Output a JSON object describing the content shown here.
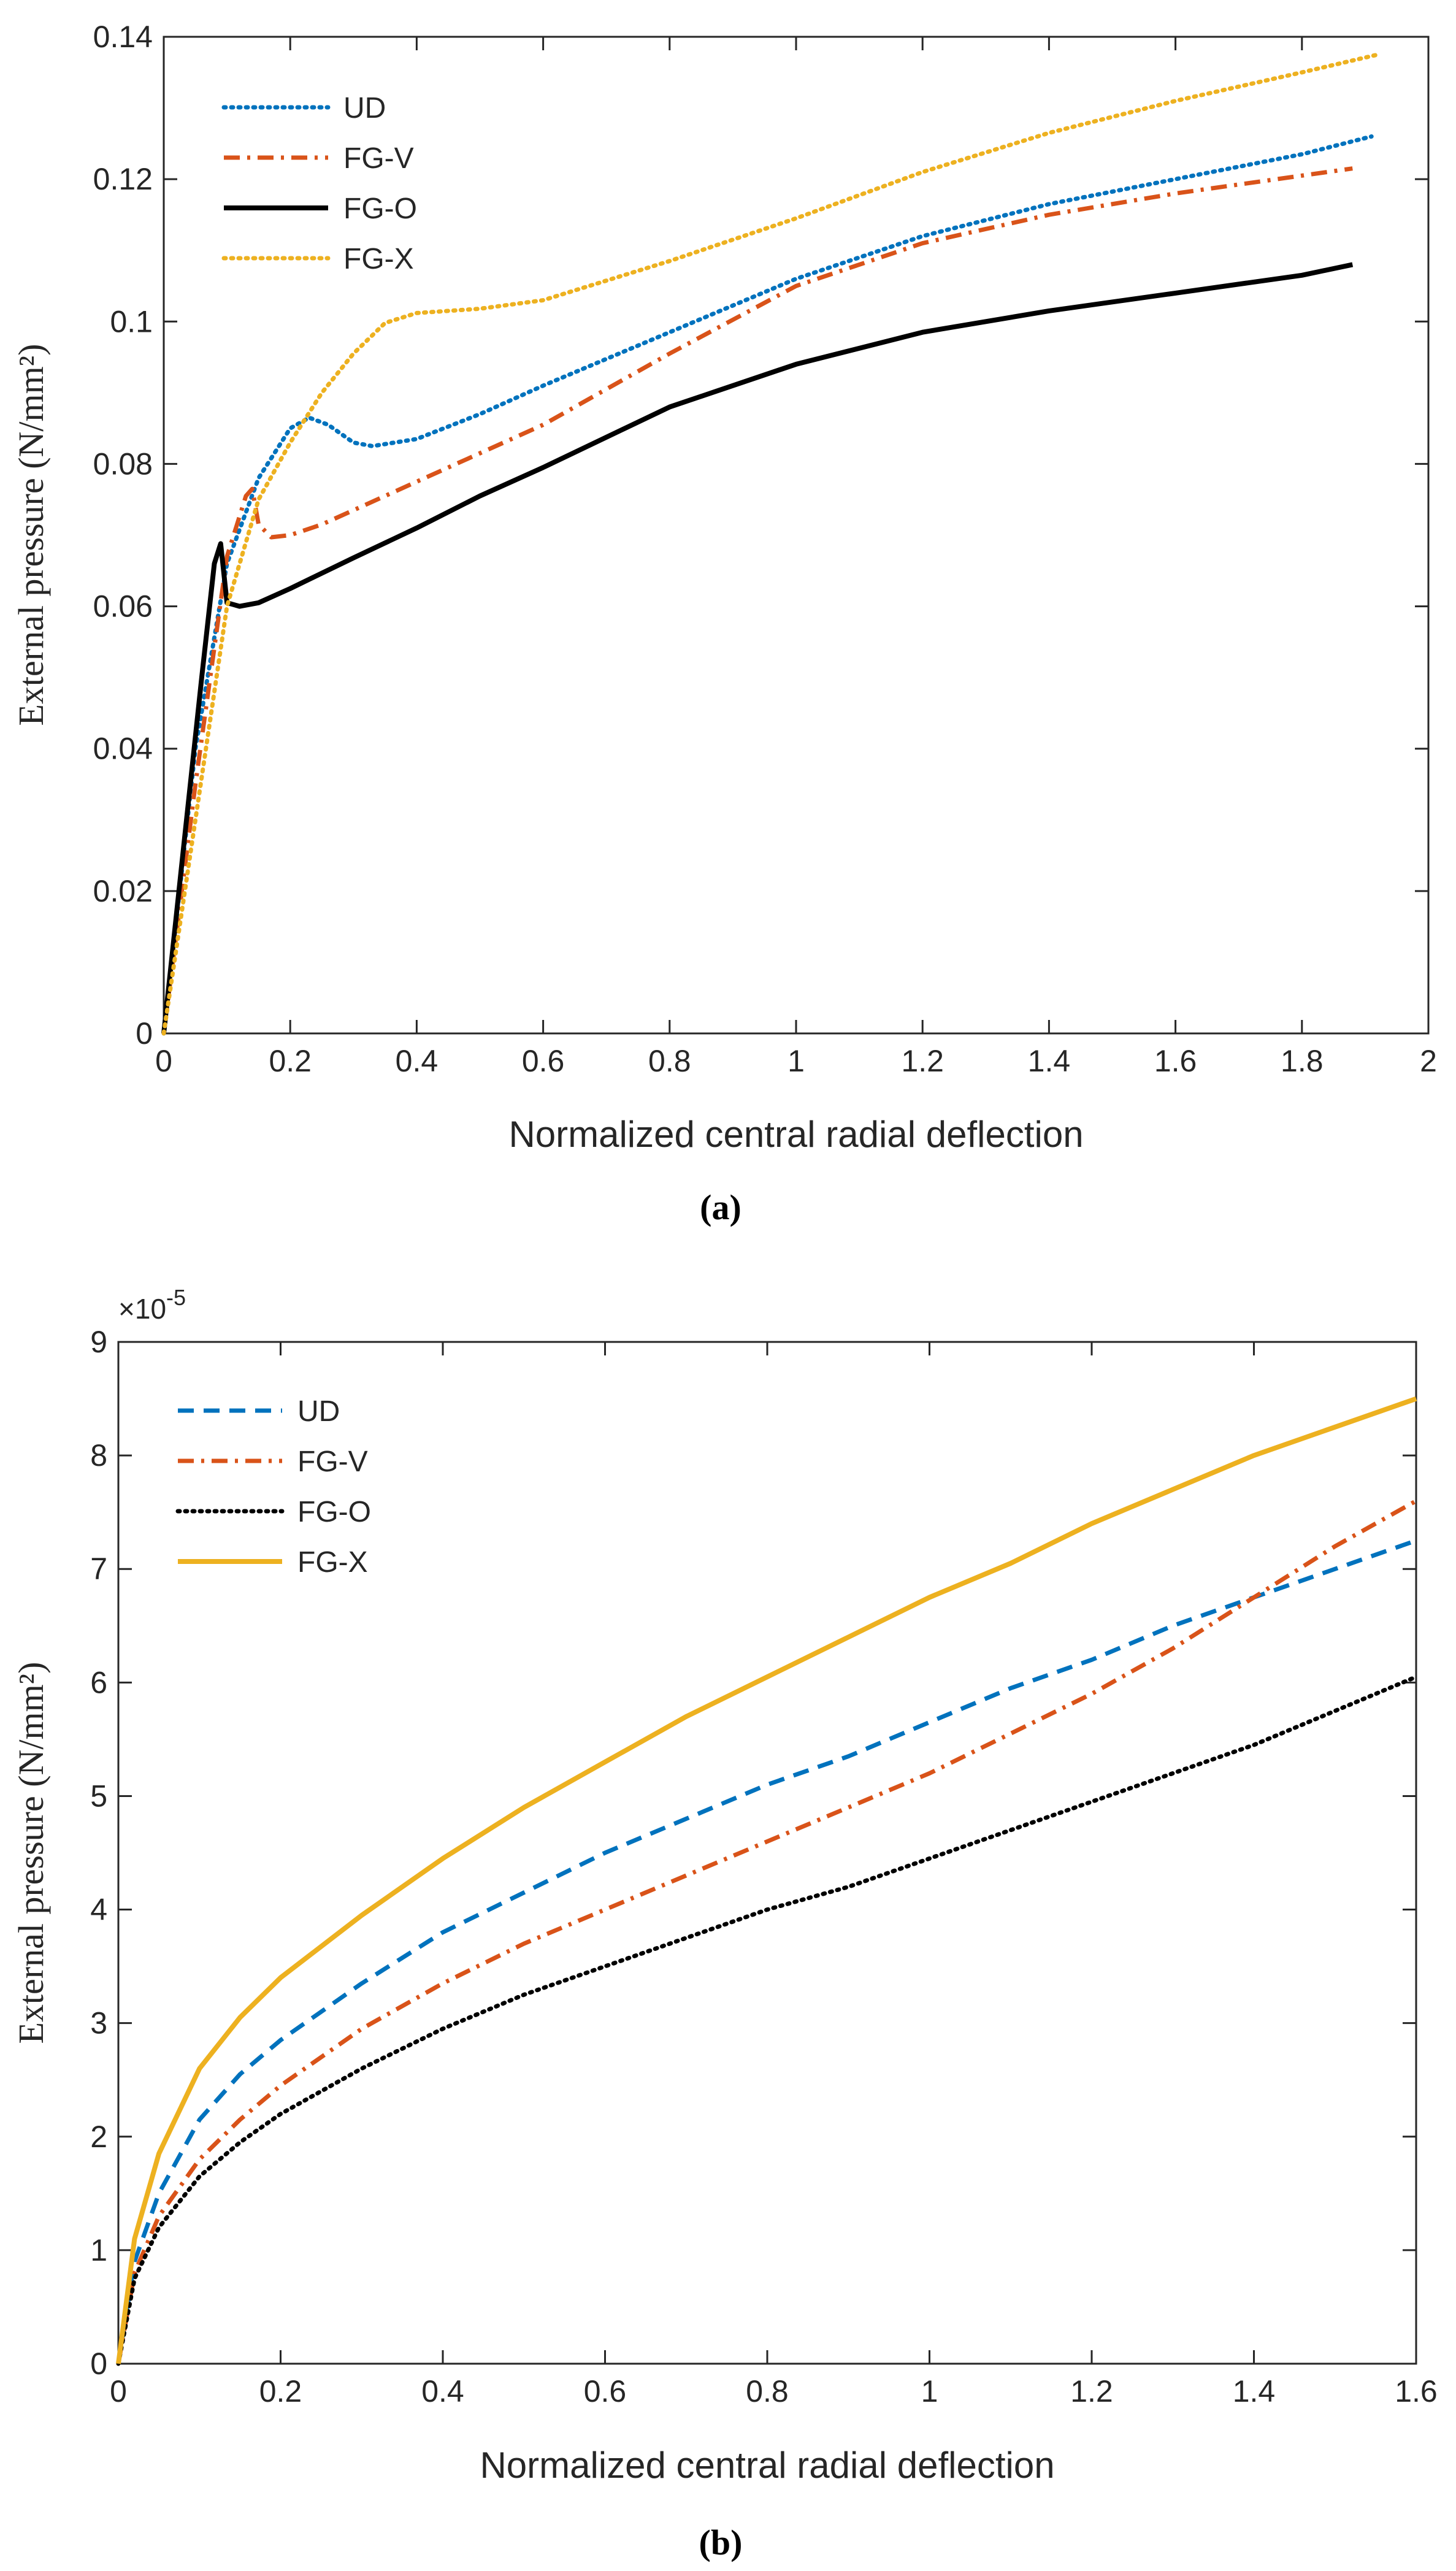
{
  "chart_data": [
    {
      "type": "line",
      "caption": "a",
      "xlabel": "Normalized central radial deflection",
      "ylabel": "External pressure (N/mm²)",
      "xlim": [
        0,
        2
      ],
      "ylim": [
        0,
        0.14
      ],
      "x_ticks": [
        0,
        0.2,
        0.4,
        0.6,
        0.8,
        1,
        1.2,
        1.4,
        1.6,
        1.8,
        2
      ],
      "x_tick_labels": [
        "0",
        "0.2",
        "0.4",
        "0.6",
        "0.8",
        "1",
        "1.2",
        "1.4",
        "1.6",
        "1.8",
        "2"
      ],
      "y_ticks": [
        0,
        0.02,
        0.04,
        0.06,
        0.08,
        0.1,
        0.12,
        0.14
      ],
      "y_tick_labels": [
        "0",
        "0.02",
        "0.04",
        "0.06",
        "0.08",
        "0.1",
        "0.12",
        "0.14"
      ],
      "legend_position": "top-left",
      "series": [
        {
          "name": "UD",
          "color": "#0072BD",
          "style": "dotted",
          "x": [
            0,
            0.05,
            0.1,
            0.15,
            0.2,
            0.23,
            0.26,
            0.3,
            0.33,
            0.4,
            0.5,
            0.6,
            0.8,
            1.0,
            1.2,
            1.4,
            1.6,
            1.8,
            1.91
          ],
          "y": [
            0,
            0.04,
            0.066,
            0.078,
            0.085,
            0.0865,
            0.0855,
            0.083,
            0.0825,
            0.0835,
            0.087,
            0.091,
            0.0985,
            0.106,
            0.112,
            0.1165,
            0.12,
            0.1235,
            0.126
          ]
        },
        {
          "name": "FG-V",
          "color": "#D95319",
          "style": "dashdot",
          "x": [
            0,
            0.05,
            0.1,
            0.13,
            0.14,
            0.15,
            0.17,
            0.2,
            0.25,
            0.3,
            0.4,
            0.5,
            0.6,
            0.8,
            1.0,
            1.2,
            1.4,
            1.6,
            1.8,
            1.88
          ],
          "y": [
            0,
            0.035,
            0.067,
            0.0755,
            0.0765,
            0.0715,
            0.0697,
            0.07,
            0.0715,
            0.0735,
            0.0775,
            0.0815,
            0.0855,
            0.0955,
            0.105,
            0.111,
            0.115,
            0.118,
            0.1205,
            0.1215
          ]
        },
        {
          "name": "FG-O",
          "color": "#000000",
          "style": "solid",
          "x": [
            0,
            0.03,
            0.06,
            0.08,
            0.09,
            0.1,
            0.12,
            0.15,
            0.2,
            0.3,
            0.4,
            0.5,
            0.6,
            0.8,
            1.0,
            1.2,
            1.4,
            1.6,
            1.8,
            1.88
          ],
          "y": [
            0,
            0.025,
            0.05,
            0.066,
            0.0688,
            0.0605,
            0.06,
            0.0605,
            0.0625,
            0.0668,
            0.071,
            0.0755,
            0.0795,
            0.088,
            0.094,
            0.0985,
            0.1015,
            0.104,
            0.1065,
            0.108
          ]
        },
        {
          "name": "FG-X",
          "color": "#EDB120",
          "style": "dotted",
          "x": [
            0,
            0.05,
            0.1,
            0.15,
            0.2,
            0.25,
            0.3,
            0.35,
            0.4,
            0.5,
            0.6,
            0.8,
            1.0,
            1.2,
            1.4,
            1.6,
            1.8,
            1.92
          ],
          "y": [
            0,
            0.03,
            0.06,
            0.075,
            0.083,
            0.09,
            0.0955,
            0.0998,
            0.1012,
            0.1018,
            0.103,
            0.1085,
            0.1145,
            0.121,
            0.1265,
            0.131,
            0.135,
            0.1375
          ]
        }
      ]
    },
    {
      "type": "line",
      "caption": "b",
      "xlabel": "Normalized central radial deflection",
      "ylabel": "External pressure (N/mm²)",
      "y_scale_label": "×10",
      "y_scale_exponent": "-5",
      "xlim": [
        0,
        1.6
      ],
      "ylim": [
        0,
        9
      ],
      "x_ticks": [
        0,
        0.2,
        0.4,
        0.6,
        0.8,
        1,
        1.2,
        1.4,
        1.6
      ],
      "x_tick_labels": [
        "0",
        "0.2",
        "0.4",
        "0.6",
        "0.8",
        "1",
        "1.2",
        "1.4",
        "1.6"
      ],
      "y_ticks": [
        0,
        1,
        2,
        3,
        4,
        5,
        6,
        7,
        8,
        9
      ],
      "y_tick_labels": [
        "0",
        "1",
        "2",
        "3",
        "4",
        "5",
        "6",
        "7",
        "8",
        "9"
      ],
      "legend_position": "top-left",
      "series": [
        {
          "name": "UD",
          "color": "#0072BD",
          "style": "dashed",
          "x": [
            0,
            0.02,
            0.05,
            0.1,
            0.15,
            0.2,
            0.3,
            0.4,
            0.5,
            0.6,
            0.7,
            0.8,
            0.9,
            1.0,
            1.1,
            1.2,
            1.3,
            1.4,
            1.5,
            1.6
          ],
          "y": [
            0,
            0.9,
            1.5,
            2.15,
            2.55,
            2.85,
            3.35,
            3.8,
            4.15,
            4.5,
            4.8,
            5.1,
            5.35,
            5.65,
            5.95,
            6.2,
            6.5,
            6.75,
            7.0,
            7.25
          ]
        },
        {
          "name": "FG-V",
          "color": "#D95319",
          "style": "dashdot",
          "x": [
            0,
            0.02,
            0.05,
            0.1,
            0.15,
            0.2,
            0.3,
            0.4,
            0.5,
            0.6,
            0.7,
            0.8,
            0.9,
            1.0,
            1.1,
            1.2,
            1.3,
            1.4,
            1.5,
            1.6
          ],
          "y": [
            0,
            0.8,
            1.3,
            1.8,
            2.15,
            2.45,
            2.95,
            3.35,
            3.7,
            4.0,
            4.3,
            4.6,
            4.9,
            5.2,
            5.55,
            5.9,
            6.3,
            6.75,
            7.2,
            7.6
          ]
        },
        {
          "name": "FG-O",
          "color": "#000000",
          "style": "dotted",
          "x": [
            0,
            0.02,
            0.05,
            0.1,
            0.15,
            0.2,
            0.3,
            0.4,
            0.5,
            0.6,
            0.7,
            0.8,
            0.9,
            1.0,
            1.1,
            1.2,
            1.3,
            1.4,
            1.5,
            1.6
          ],
          "y": [
            0,
            0.75,
            1.2,
            1.65,
            1.95,
            2.2,
            2.6,
            2.95,
            3.25,
            3.5,
            3.75,
            4.0,
            4.2,
            4.45,
            4.7,
            4.95,
            5.2,
            5.45,
            5.75,
            6.05
          ]
        },
        {
          "name": "FG-X",
          "color": "#EDB120",
          "style": "solid",
          "x": [
            0,
            0.02,
            0.05,
            0.1,
            0.15,
            0.2,
            0.3,
            0.4,
            0.5,
            0.6,
            0.7,
            0.8,
            0.9,
            1.0,
            1.1,
            1.2,
            1.3,
            1.4,
            1.5,
            1.6
          ],
          "y": [
            0,
            1.1,
            1.85,
            2.6,
            3.05,
            3.4,
            3.95,
            4.45,
            4.9,
            5.3,
            5.7,
            6.05,
            6.4,
            6.75,
            7.05,
            7.4,
            7.7,
            8.0,
            8.25,
            8.5
          ]
        }
      ]
    }
  ]
}
